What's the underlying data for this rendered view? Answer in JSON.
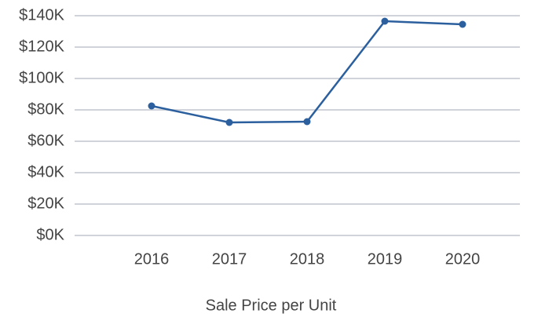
{
  "chart_data": {
    "type": "line",
    "xlabel": "Sale Price per Unit",
    "categories": [
      "2016",
      "2017",
      "2018",
      "2019",
      "2020"
    ],
    "series": [
      {
        "name": "Sale Price per Unit",
        "color": "#2b5f9e",
        "values": [
          82500,
          72000,
          72500,
          136500,
          134500
        ]
      }
    ],
    "ylim": [
      0,
      140000
    ],
    "yticks": [
      {
        "value": 0,
        "label": "$0K"
      },
      {
        "value": 20000,
        "label": "$20K"
      },
      {
        "value": 40000,
        "label": "$40K"
      },
      {
        "value": 60000,
        "label": "$60K"
      },
      {
        "value": 80000,
        "label": "$80K"
      },
      {
        "value": 100000,
        "label": "$100K"
      },
      {
        "value": 120000,
        "label": "$120K"
      },
      {
        "value": 140000,
        "label": "$140K"
      }
    ],
    "grid": true
  }
}
